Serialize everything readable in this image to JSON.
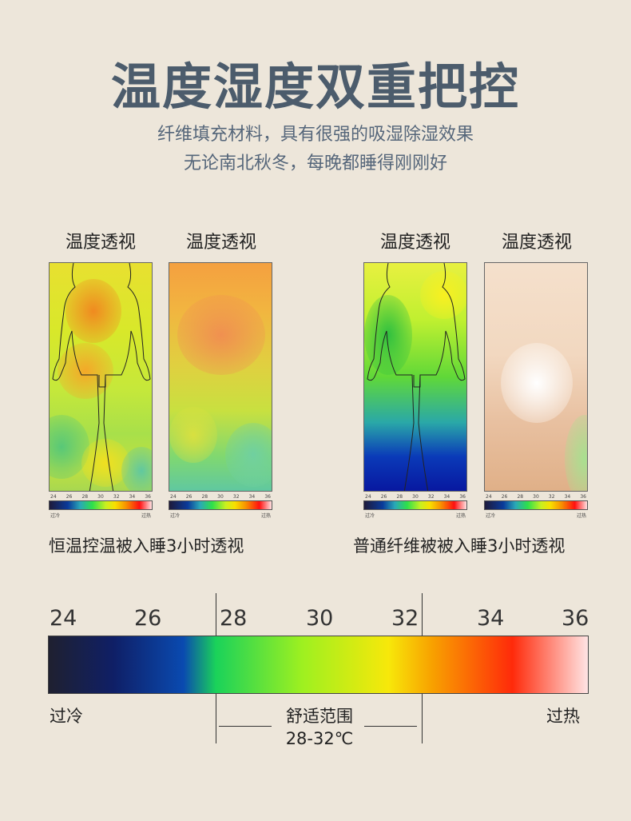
{
  "header": {
    "title": "温度湿度双重把控",
    "subtitle_line1": "纤维填充材料，具有很强的吸湿除湿效果",
    "subtitle_line2": "无论南北秋冬，每晚都睡得刚刚好"
  },
  "panels": [
    {
      "label": "温度透视"
    },
    {
      "label": "温度透视"
    },
    {
      "label": "温度透视"
    },
    {
      "label": "温度透视"
    }
  ],
  "mini_scale": {
    "ticks": [
      "24",
      "26",
      "28",
      "30",
      "32",
      "34",
      "36"
    ],
    "left_end": "过冷",
    "right_end": "过热"
  },
  "captions": {
    "left": "恒温控温被入睡3小时透视",
    "right": "普通纤维被被入睡3小时透视"
  },
  "scale": {
    "ticks": [
      "24",
      "26",
      "28",
      "30",
      "32",
      "34",
      "36"
    ],
    "left_label": "过冷",
    "right_label": "过热",
    "comfort_label": "舒适范围",
    "comfort_range": "28-32℃"
  },
  "colors": {
    "title": "#4c5c6c",
    "background": "#ede6da"
  }
}
